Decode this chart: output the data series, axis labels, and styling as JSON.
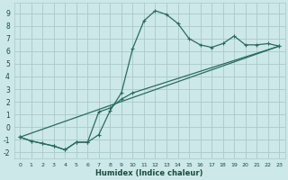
{
  "xlabel": "Humidex (Indice chaleur)",
  "bg_color": "#cce8e8",
  "grid_color": "#aacaca",
  "line_color": "#2a6b5e",
  "xlim": [
    -0.5,
    23.5
  ],
  "ylim": [
    -2.5,
    9.8
  ],
  "xticks": [
    0,
    1,
    2,
    3,
    4,
    5,
    6,
    7,
    8,
    9,
    10,
    11,
    12,
    13,
    14,
    15,
    16,
    17,
    18,
    19,
    20,
    21,
    22,
    23
  ],
  "yticks": [
    -2,
    -1,
    0,
    1,
    2,
    3,
    4,
    5,
    6,
    7,
    8,
    9
  ],
  "curve1_x": [
    0,
    1,
    2,
    3,
    4,
    5,
    6,
    7,
    8,
    9,
    10,
    11,
    12,
    13,
    14,
    15,
    16,
    17,
    18,
    19,
    20,
    21,
    22,
    23
  ],
  "curve1_y": [
    -0.8,
    -1.1,
    -1.3,
    -1.5,
    -1.8,
    -1.2,
    -1.2,
    -0.6,
    1.3,
    2.7,
    6.2,
    8.4,
    9.2,
    8.9,
    8.2,
    7.0,
    6.5,
    6.3,
    6.6,
    7.2,
    6.5,
    6.5,
    6.6,
    6.4
  ],
  "curve2_x": [
    0,
    1,
    2,
    3,
    4,
    5,
    6,
    7,
    8,
    9,
    10,
    23
  ],
  "curve2_y": [
    -0.8,
    -1.1,
    -1.3,
    -1.5,
    -1.8,
    -1.2,
    -1.2,
    1.2,
    1.5,
    2.2,
    2.7,
    6.4
  ],
  "curve3_x": [
    0,
    23
  ],
  "curve3_y": [
    -0.8,
    6.4
  ]
}
